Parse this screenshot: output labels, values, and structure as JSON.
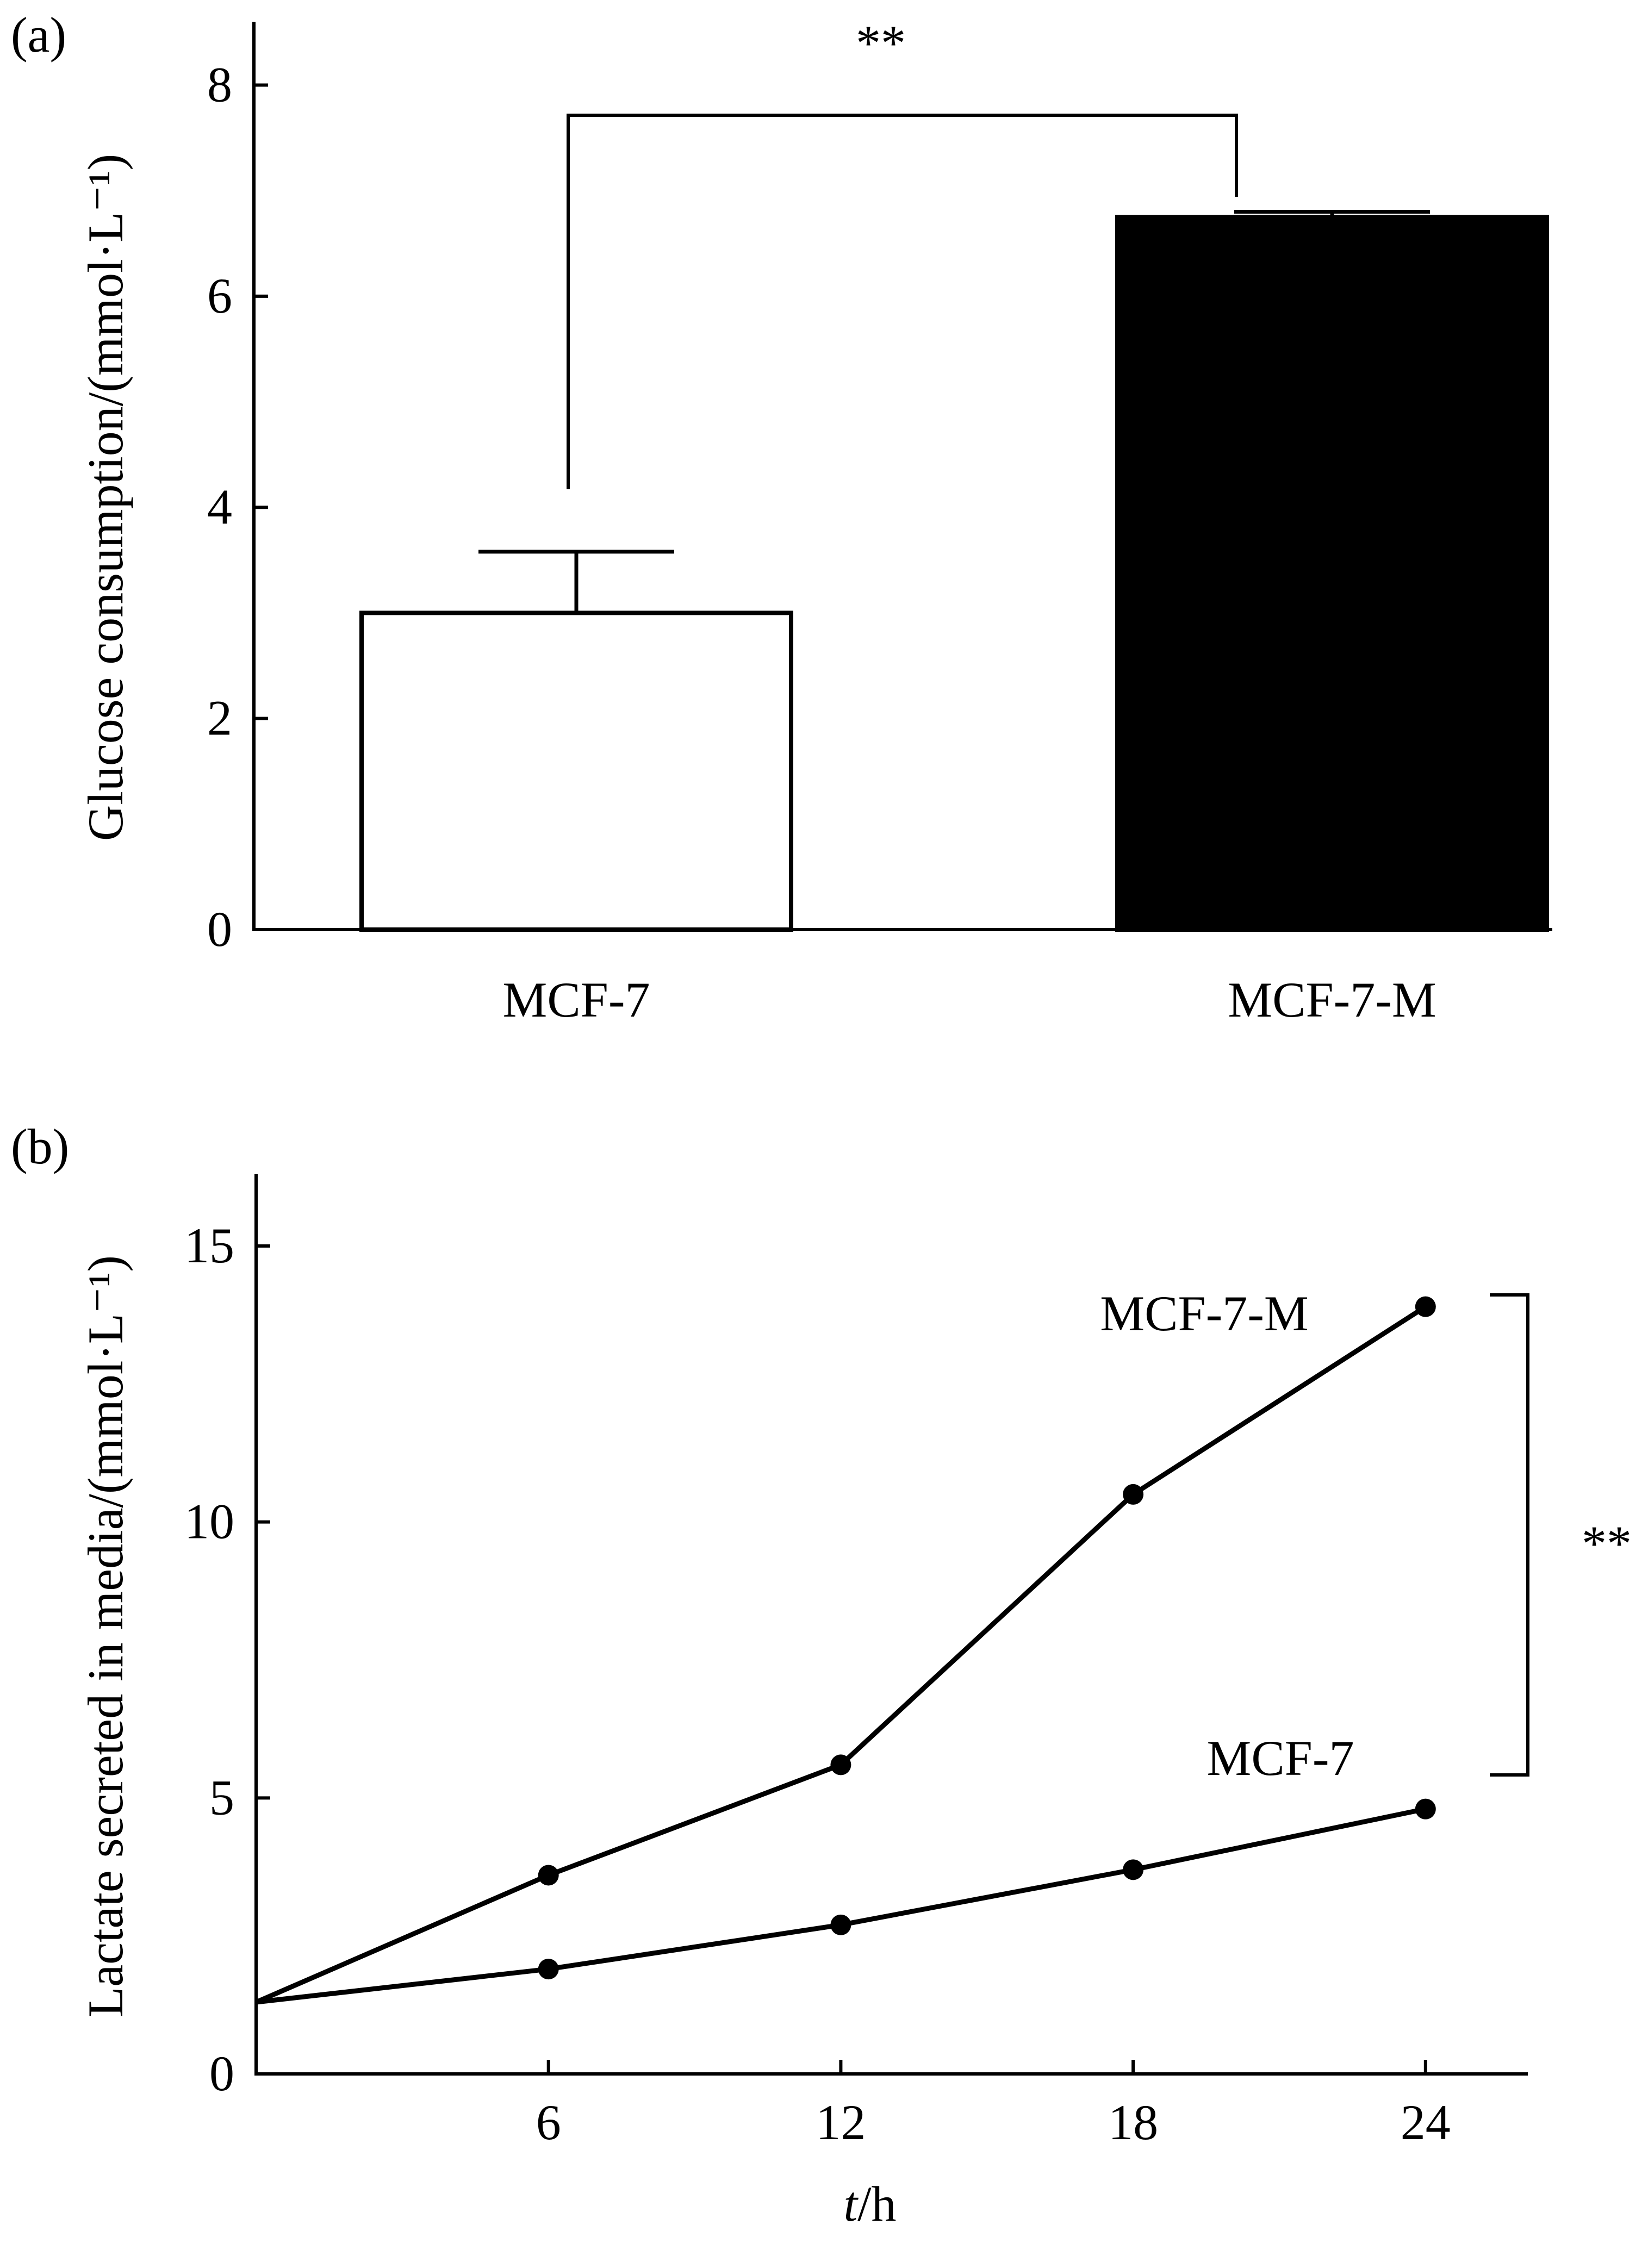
{
  "chart_data": [
    {
      "panel": "(a)",
      "type": "bar",
      "categories": [
        "MCF-7",
        "MCF-7-M"
      ],
      "values": [
        3.0,
        6.75
      ],
      "errors": [
        0.58,
        0.05
      ],
      "bar_fill": [
        "#ffffff",
        "#000000"
      ],
      "ylabel": "Glucose consumption/(mmol·L⁻¹)",
      "yticks": [
        "0",
        "2",
        "4",
        "6",
        "8"
      ],
      "ylim": [
        0,
        8.6
      ],
      "significance": "**",
      "grid": false
    },
    {
      "panel": "(b)",
      "type": "line",
      "x": [
        0,
        6,
        12,
        18,
        24
      ],
      "series": [
        {
          "name": "MCF-7-M",
          "values": [
            1.3,
            3.6,
            5.6,
            10.5,
            13.9
          ]
        },
        {
          "name": "MCF-7",
          "values": [
            1.3,
            1.9,
            2.7,
            3.7,
            4.8
          ]
        }
      ],
      "xlabel_italic": "t",
      "xlabel_rest": "/h",
      "ylabel": "Lactate secreted in media/(mmol·L⁻¹)",
      "xticks": [
        "6",
        "12",
        "18",
        "24"
      ],
      "yticks": [
        "0",
        "5",
        "10",
        "15"
      ],
      "xlim": [
        0,
        26.1
      ],
      "ylim": [
        0,
        16.3
      ],
      "significance": "**",
      "grid": false
    }
  ]
}
